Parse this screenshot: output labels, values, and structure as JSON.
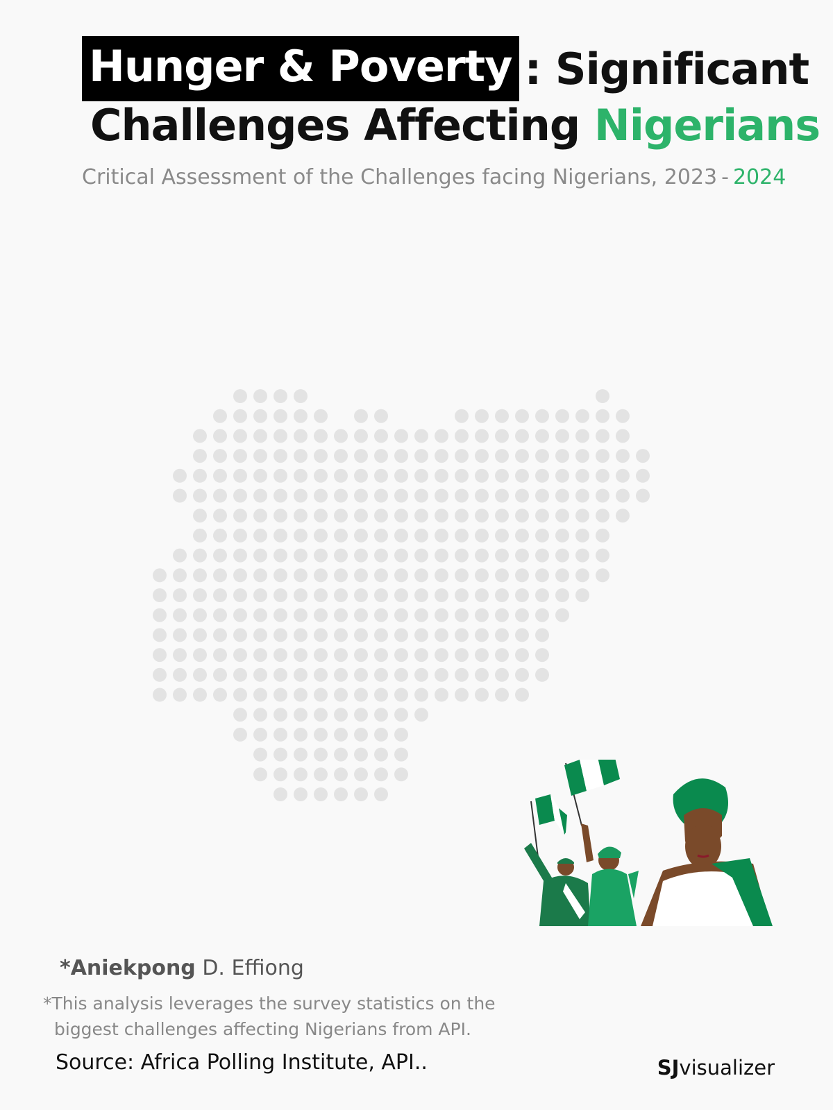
{
  "title": {
    "highlight": "Hunger & Poverty",
    "rest_line1": ": Significant",
    "line2_plain": "Challenges Affecting",
    "line2_green": "Nigerians"
  },
  "subtitle": {
    "text": "Critical Assessment of the Challenges facing Nigerians,",
    "year_start": "2023",
    "dash": "-",
    "year_end": "2024"
  },
  "map": {
    "country": "Nigeria",
    "dot_color": "#e3e3e3"
  },
  "colors": {
    "accent_green": "#2db36a",
    "flag_green": "#0a8a4e",
    "highlight_bg": "#000000"
  },
  "author": {
    "prefix": "*",
    "first": "Aniekpong",
    "rest": "D. Effiong"
  },
  "note": {
    "line1": "*This analysis leverages the survey statistics on the",
    "line2": "biggest challenges affecting Nigerians from API."
  },
  "source": "Source: Africa Polling Institute, API..",
  "brand": {
    "bold": "SJ",
    "rest": "visualizer"
  }
}
